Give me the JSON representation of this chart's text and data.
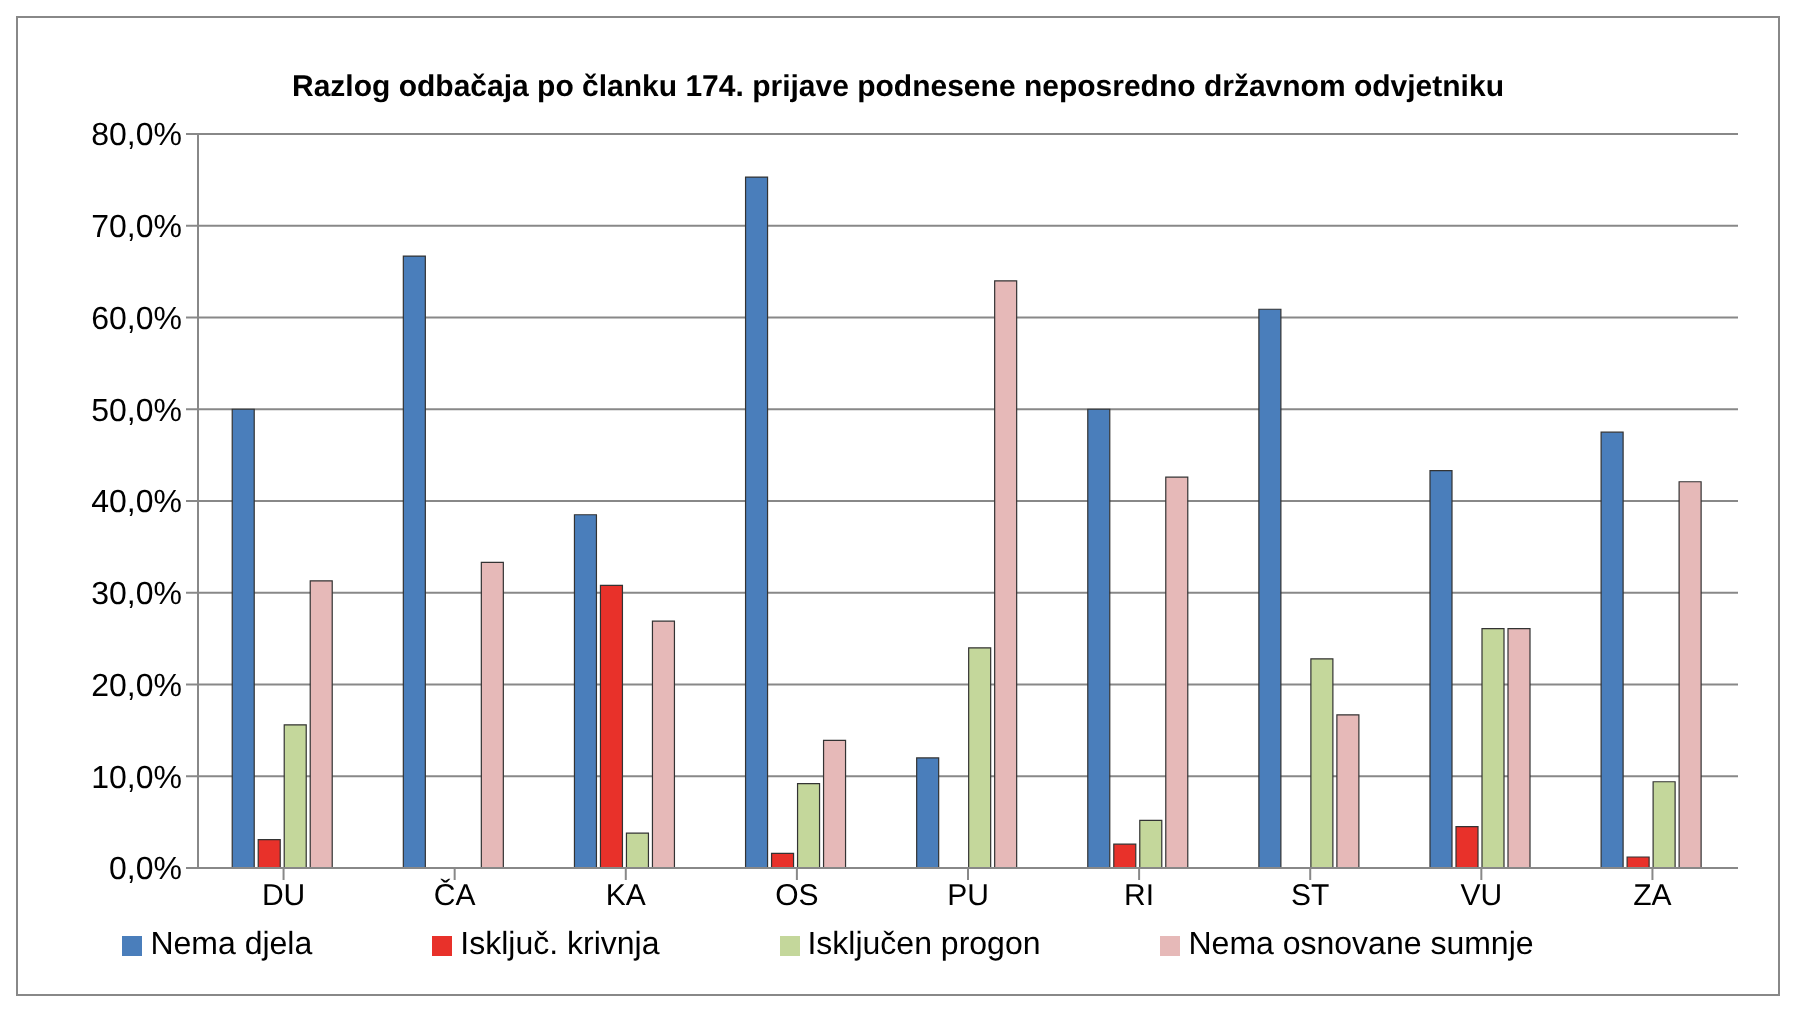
{
  "chart_data": {
    "type": "bar",
    "title": "Razlog odbačaja po članku 174. prijave podnesene neposredno državnom odvjetniku",
    "categories": [
      "DU",
      "ČA",
      "KA",
      "OS",
      "PU",
      "RI",
      "ST",
      "VU",
      "ZA"
    ],
    "series": [
      {
        "name": "Nema djela",
        "color": "#4a7ebb",
        "values": [
          50.0,
          66.7,
          38.5,
          75.3,
          12.0,
          50.0,
          60.9,
          43.3,
          47.5
        ]
      },
      {
        "name": "Isključ. krivnja",
        "color": "#e8312a",
        "values": [
          3.1,
          0,
          30.8,
          1.6,
          0,
          2.6,
          0,
          4.5,
          1.2
        ]
      },
      {
        "name": "Isključen progon",
        "color": "#c4d79b",
        "values": [
          15.6,
          0,
          3.8,
          9.2,
          24.0,
          5.2,
          22.8,
          26.1,
          9.4
        ]
      },
      {
        "name": "Nema osnovane sumnje",
        "color": "#e6b9b8",
        "values": [
          31.3,
          33.3,
          26.9,
          13.9,
          64.0,
          42.6,
          16.7,
          26.1,
          42.1
        ]
      }
    ],
    "ylim": [
      0,
      80
    ],
    "yticks": [
      {
        "value": 0,
        "label": "0,0%"
      },
      {
        "value": 10,
        "label": "10,0%"
      },
      {
        "value": 20,
        "label": "20,0%"
      },
      {
        "value": 30,
        "label": "30,0%"
      },
      {
        "value": 40,
        "label": "40,0%"
      },
      {
        "value": 50,
        "label": "50,0%"
      },
      {
        "value": 60,
        "label": "60,0%"
      },
      {
        "value": 70,
        "label": "70,0%"
      },
      {
        "value": 80,
        "label": "80,0%"
      }
    ],
    "grid": "y",
    "legend": "bottom"
  }
}
